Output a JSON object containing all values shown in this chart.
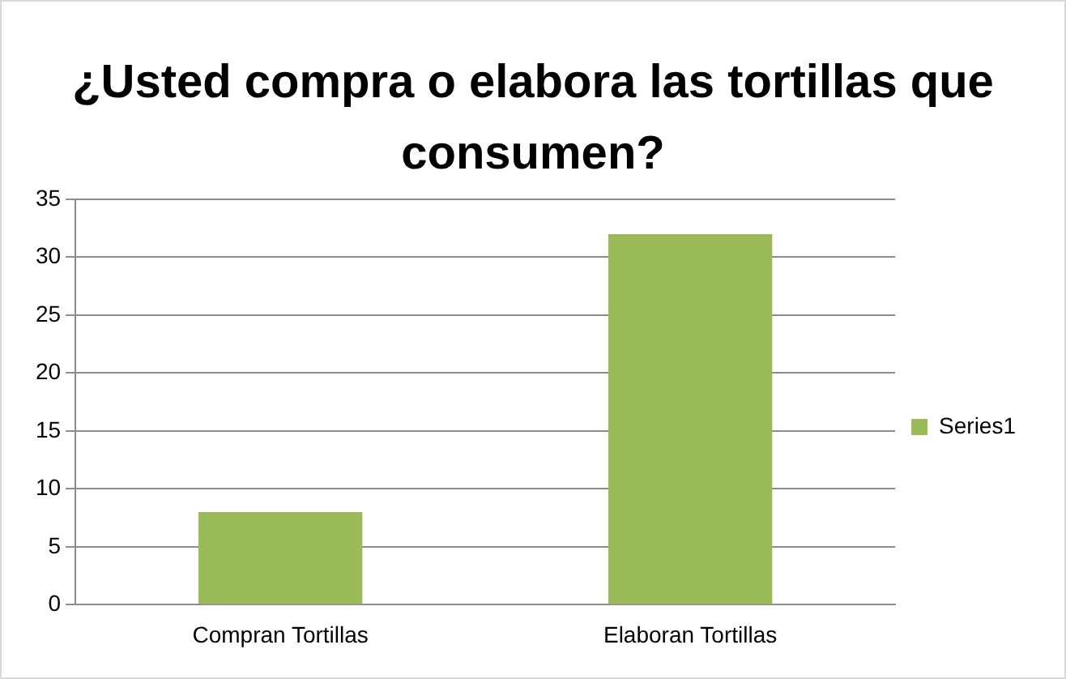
{
  "chart_data": {
    "type": "bar",
    "title": "¿Usted compra o elabora las tortillas que consumen?",
    "categories": [
      "Compran Tortillas",
      "Elaboran Tortillas"
    ],
    "series": [
      {
        "name": "Series1",
        "color": "#9bbb59",
        "values": [
          8,
          32
        ]
      }
    ],
    "ylim": [
      0,
      35
    ],
    "yticks": [
      0,
      5,
      10,
      15,
      20,
      25,
      30,
      35
    ],
    "grid": "y",
    "legend": "right"
  }
}
